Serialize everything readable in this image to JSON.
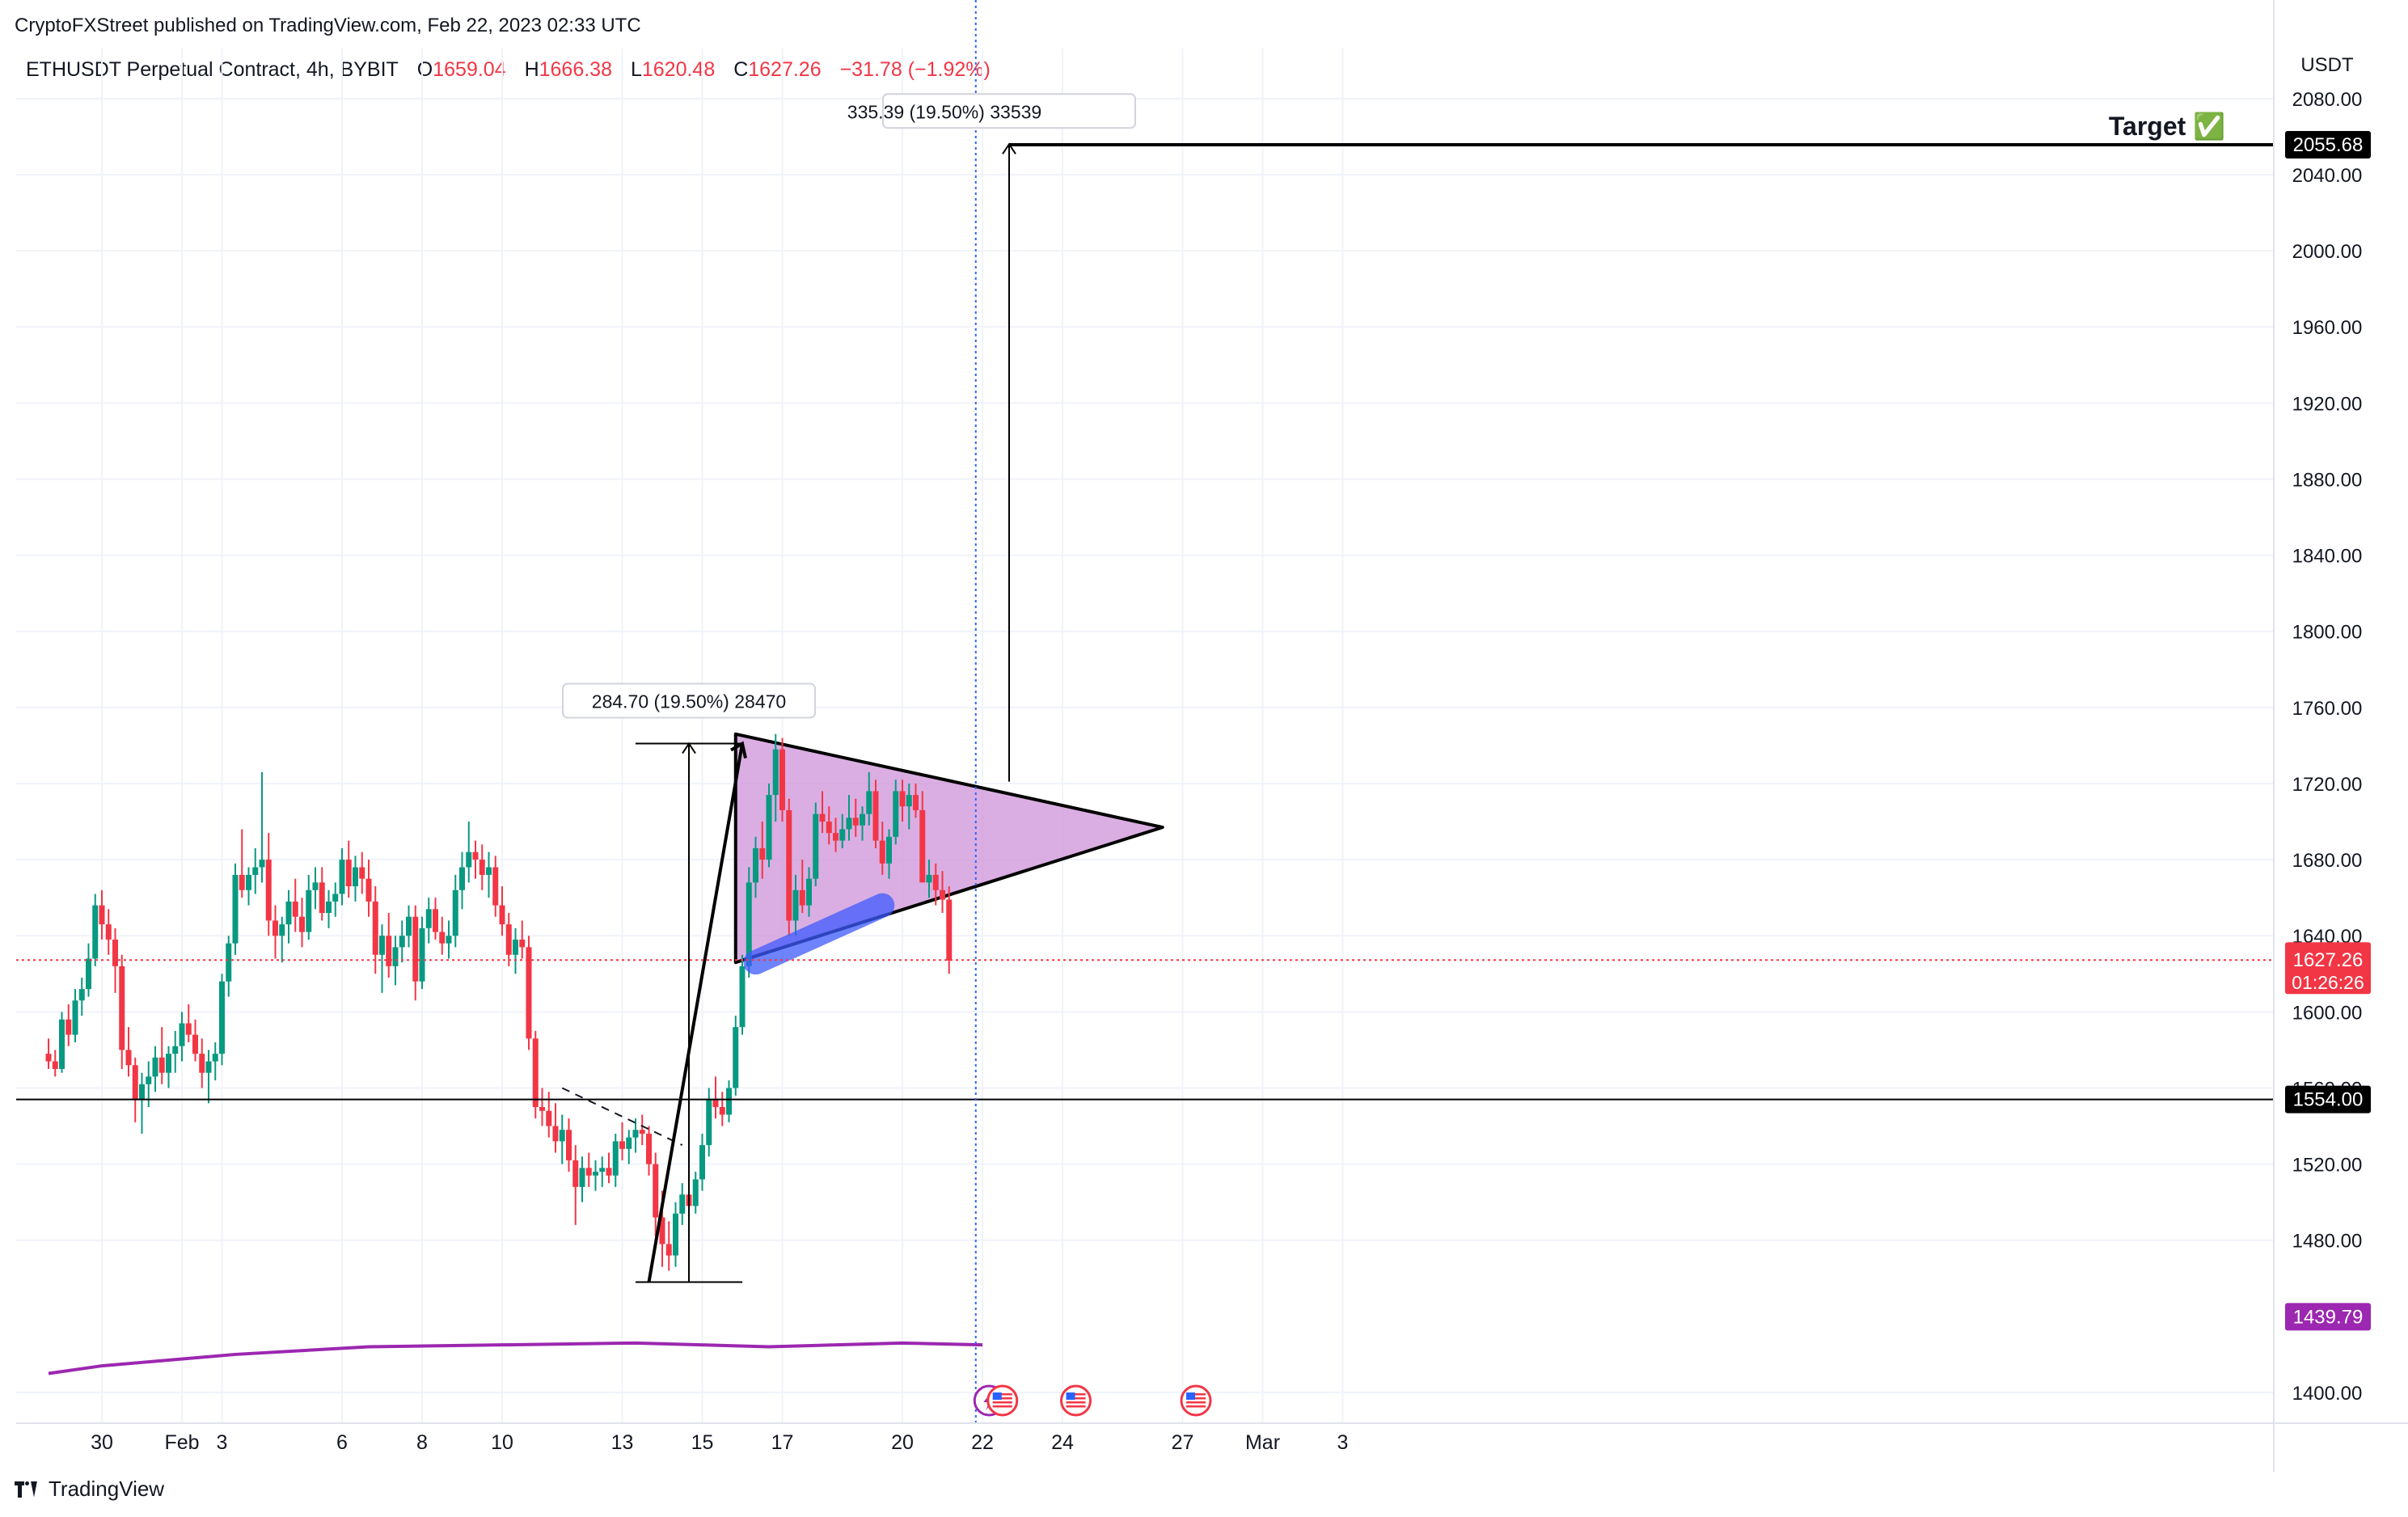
{
  "header": {
    "published": "CryptoFXStreet published on TradingView.com, Feb 22, 2023 02:33 UTC"
  },
  "legend": {
    "symbol": "ETHUSDT Perpetual Contract, 4h, BYBIT",
    "o_label": "O",
    "o": "1659.04",
    "h_label": "H",
    "h": "1666.38",
    "l_label": "L",
    "l": "1620.48",
    "c_label": "C",
    "c": "1627.26",
    "change": "−31.78 (−1.92%)"
  },
  "footer": {
    "brand": "TradingView"
  },
  "colors": {
    "up": "#089981",
    "down": "#f23645",
    "ma": "#9c27b0",
    "triangle_fill": "#ce93d8",
    "blue_highlight": "#3d5afe"
  },
  "chart_data": {
    "type": "candlestick",
    "currency_label": "USDT",
    "ylim": [
      1380,
      2100
    ],
    "yticks": [
      "2080.00",
      "2040.00",
      "2000.00",
      "1960.00",
      "1920.00",
      "1880.00",
      "1840.00",
      "1800.00",
      "1760.00",
      "1720.00",
      "1680.00",
      "1640.00",
      "1600.00",
      "1560.00",
      "1520.00",
      "1480.00",
      "1400.00"
    ],
    "xticks": [
      {
        "label": "30",
        "i": 0
      },
      {
        "label": "Feb",
        "i": 12
      },
      {
        "label": "3",
        "i": 18
      },
      {
        "label": "6",
        "i": 36
      },
      {
        "label": "8",
        "i": 48
      },
      {
        "label": "10",
        "i": 60
      },
      {
        "label": "13",
        "i": 78
      },
      {
        "label": "15",
        "i": 90
      },
      {
        "label": "17",
        "i": 102
      },
      {
        "label": "20",
        "i": 120
      },
      {
        "label": "22",
        "i": 132
      },
      {
        "label": "24",
        "i": 144
      },
      {
        "label": "27",
        "i": 162
      },
      {
        "label": "Mar",
        "i": 174
      },
      {
        "label": "3",
        "i": 186
      }
    ],
    "x_start_index": -8,
    "candles": [
      [
        1578,
        1586,
        1570,
        1574
      ],
      [
        1574,
        1580,
        1566,
        1570
      ],
      [
        1570,
        1600,
        1568,
        1596
      ],
      [
        1596,
        1604,
        1582,
        1588
      ],
      [
        1588,
        1612,
        1584,
        1606
      ],
      [
        1606,
        1618,
        1598,
        1612
      ],
      [
        1612,
        1636,
        1608,
        1628
      ],
      [
        1628,
        1662,
        1624,
        1656
      ],
      [
        1656,
        1664,
        1638,
        1646
      ],
      [
        1646,
        1654,
        1630,
        1638
      ],
      [
        1638,
        1644,
        1610,
        1624
      ],
      [
        1624,
        1630,
        1570,
        1580
      ],
      [
        1580,
        1592,
        1566,
        1572
      ],
      [
        1572,
        1576,
        1542,
        1554
      ],
      [
        1554,
        1568,
        1536,
        1562
      ],
      [
        1562,
        1574,
        1550,
        1566
      ],
      [
        1566,
        1582,
        1558,
        1576
      ],
      [
        1576,
        1592,
        1562,
        1568
      ],
      [
        1568,
        1582,
        1560,
        1578
      ],
      [
        1578,
        1590,
        1568,
        1582
      ],
      [
        1582,
        1600,
        1574,
        1594
      ],
      [
        1594,
        1604,
        1584,
        1588
      ],
      [
        1588,
        1596,
        1574,
        1578
      ],
      [
        1578,
        1586,
        1560,
        1568
      ],
      [
        1568,
        1580,
        1552,
        1574
      ],
      [
        1574,
        1584,
        1564,
        1578
      ],
      [
        1578,
        1620,
        1572,
        1616
      ],
      [
        1616,
        1640,
        1608,
        1636
      ],
      [
        1636,
        1678,
        1630,
        1672
      ],
      [
        1672,
        1696,
        1660,
        1664
      ],
      [
        1664,
        1676,
        1656,
        1672
      ],
      [
        1672,
        1686,
        1662,
        1676
      ],
      [
        1676,
        1726,
        1668,
        1680
      ],
      [
        1680,
        1694,
        1640,
        1648
      ],
      [
        1648,
        1656,
        1628,
        1640
      ],
      [
        1640,
        1650,
        1626,
        1646
      ],
      [
        1646,
        1664,
        1636,
        1658
      ],
      [
        1658,
        1670,
        1642,
        1650
      ],
      [
        1650,
        1660,
        1634,
        1642
      ],
      [
        1642,
        1672,
        1638,
        1664
      ],
      [
        1664,
        1676,
        1654,
        1668
      ],
      [
        1668,
        1676,
        1648,
        1652
      ],
      [
        1652,
        1664,
        1644,
        1658
      ],
      [
        1658,
        1668,
        1650,
        1662
      ],
      [
        1662,
        1686,
        1656,
        1680
      ],
      [
        1680,
        1690,
        1660,
        1666
      ],
      [
        1666,
        1682,
        1658,
        1676
      ],
      [
        1676,
        1684,
        1662,
        1670
      ],
      [
        1670,
        1680,
        1650,
        1658
      ],
      [
        1658,
        1666,
        1620,
        1630
      ],
      [
        1630,
        1646,
        1610,
        1640
      ],
      [
        1640,
        1652,
        1618,
        1624
      ],
      [
        1624,
        1640,
        1614,
        1634
      ],
      [
        1634,
        1648,
        1626,
        1640
      ],
      [
        1640,
        1656,
        1634,
        1650
      ],
      [
        1650,
        1656,
        1606,
        1616
      ],
      [
        1616,
        1650,
        1612,
        1644
      ],
      [
        1644,
        1660,
        1636,
        1654
      ],
      [
        1654,
        1660,
        1638,
        1642
      ],
      [
        1642,
        1650,
        1630,
        1636
      ],
      [
        1636,
        1648,
        1628,
        1640
      ],
      [
        1640,
        1672,
        1634,
        1664
      ],
      [
        1664,
        1684,
        1654,
        1676
      ],
      [
        1676,
        1700,
        1668,
        1684
      ],
      [
        1684,
        1690,
        1670,
        1680
      ],
      [
        1680,
        1688,
        1664,
        1672
      ],
      [
        1672,
        1684,
        1660,
        1676
      ],
      [
        1676,
        1682,
        1650,
        1656
      ],
      [
        1656,
        1666,
        1640,
        1646
      ],
      [
        1646,
        1652,
        1624,
        1630
      ],
      [
        1630,
        1644,
        1620,
        1638
      ],
      [
        1638,
        1648,
        1628,
        1634
      ],
      [
        1634,
        1640,
        1580,
        1586
      ],
      [
        1586,
        1590,
        1544,
        1550
      ],
      [
        1550,
        1560,
        1540,
        1548
      ],
      [
        1548,
        1558,
        1534,
        1540
      ],
      [
        1540,
        1552,
        1526,
        1532
      ],
      [
        1532,
        1546,
        1520,
        1538
      ],
      [
        1538,
        1544,
        1516,
        1522
      ],
      [
        1522,
        1530,
        1488,
        1508
      ],
      [
        1508,
        1524,
        1500,
        1518
      ],
      [
        1518,
        1526,
        1508,
        1514
      ],
      [
        1514,
        1522,
        1506,
        1516
      ],
      [
        1516,
        1524,
        1508,
        1518
      ],
      [
        1518,
        1526,
        1510,
        1514
      ],
      [
        1514,
        1536,
        1508,
        1532
      ],
      [
        1532,
        1542,
        1522,
        1528
      ],
      [
        1528,
        1538,
        1520,
        1534
      ],
      [
        1534,
        1544,
        1526,
        1538
      ],
      [
        1538,
        1546,
        1530,
        1536
      ],
      [
        1536,
        1540,
        1514,
        1520
      ],
      [
        1520,
        1526,
        1482,
        1492
      ],
      [
        1492,
        1506,
        1466,
        1478
      ],
      [
        1478,
        1490,
        1464,
        1472
      ],
      [
        1472,
        1500,
        1466,
        1494
      ],
      [
        1494,
        1510,
        1488,
        1504
      ],
      [
        1504,
        1512,
        1492,
        1498
      ],
      [
        1498,
        1516,
        1494,
        1512
      ],
      [
        1512,
        1536,
        1506,
        1530
      ],
      [
        1530,
        1560,
        1524,
        1554
      ],
      [
        1554,
        1566,
        1544,
        1550
      ],
      [
        1550,
        1558,
        1540,
        1546
      ],
      [
        1546,
        1564,
        1542,
        1560
      ],
      [
        1560,
        1598,
        1556,
        1592
      ],
      [
        1592,
        1630,
        1588,
        1624
      ],
      [
        1624,
        1676,
        1618,
        1668
      ],
      [
        1668,
        1692,
        1660,
        1686
      ],
      [
        1686,
        1700,
        1670,
        1680
      ],
      [
        1680,
        1720,
        1676,
        1714
      ],
      [
        1714,
        1746,
        1700,
        1738
      ],
      [
        1738,
        1744,
        1700,
        1706
      ],
      [
        1706,
        1712,
        1640,
        1648
      ],
      [
        1648,
        1672,
        1640,
        1664
      ],
      [
        1664,
        1680,
        1652,
        1656
      ],
      [
        1656,
        1676,
        1650,
        1670
      ],
      [
        1670,
        1710,
        1666,
        1704
      ],
      [
        1704,
        1716,
        1694,
        1700
      ],
      [
        1700,
        1708,
        1688,
        1694
      ],
      [
        1694,
        1702,
        1684,
        1690
      ],
      [
        1690,
        1704,
        1686,
        1696
      ],
      [
        1696,
        1714,
        1690,
        1702
      ],
      [
        1702,
        1712,
        1692,
        1698
      ],
      [
        1698,
        1708,
        1690,
        1704
      ],
      [
        1704,
        1726,
        1698,
        1716
      ],
      [
        1716,
        1722,
        1686,
        1690
      ],
      [
        1690,
        1700,
        1672,
        1678
      ],
      [
        1678,
        1696,
        1670,
        1692
      ],
      [
        1692,
        1722,
        1688,
        1716
      ],
      [
        1716,
        1722,
        1700,
        1708
      ],
      [
        1708,
        1720,
        1696,
        1714
      ],
      [
        1714,
        1720,
        1702,
        1706
      ],
      [
        1706,
        1716,
        1672,
        1668
      ],
      [
        1668,
        1680,
        1660,
        1672
      ],
      [
        1672,
        1678,
        1656,
        1664
      ],
      [
        1664,
        1674,
        1652,
        1659
      ],
      [
        1659,
        1666,
        1620,
        1627
      ]
    ],
    "ma_line": [
      [
        -8,
        1410
      ],
      [
        0,
        1414
      ],
      [
        20,
        1420
      ],
      [
        40,
        1424
      ],
      [
        60,
        1425
      ],
      [
        80,
        1426
      ],
      [
        100,
        1424
      ],
      [
        120,
        1426
      ],
      [
        132,
        1425
      ]
    ],
    "horizontal_line": {
      "price": 1554,
      "label": "1554.00"
    },
    "current_price": {
      "price": 1627.26,
      "label": "1627.26",
      "countdown": "01:26:26"
    },
    "ma_label": {
      "price": 1439.79,
      "label": "1439.79"
    },
    "target": {
      "price": 2055.68,
      "label": "2055.68",
      "text": "Target ✅"
    },
    "measure_pole": {
      "i": 88,
      "from": 1458,
      "to": 1741,
      "label": "284.70 (19.50%) 28470"
    },
    "measure_target": {
      "i": 136,
      "from": 1721,
      "to": 2056,
      "label": "335.39 (19.50%) 33539"
    },
    "pole_line": {
      "i1": 82,
      "p1": 1458,
      "i2": 96,
      "p2": 1741
    },
    "triangle": [
      [
        95,
        1746
      ],
      [
        159,
        1697
      ],
      [
        95,
        1626
      ]
    ],
    "dashed_line": {
      "i1": 69,
      "p1": 1560,
      "i2": 87,
      "p2": 1530
    },
    "blue_highlight": {
      "i1": 98,
      "p1": 1626,
      "i2": 117,
      "p2": 1656
    },
    "vertical_dotted_i": 131,
    "event_icons": [
      {
        "i": 133,
        "kind": "lightning"
      },
      {
        "i": 135,
        "kind": "us-flag"
      },
      {
        "i": 146,
        "kind": "us-flag"
      },
      {
        "i": 164,
        "kind": "us-flag"
      }
    ]
  }
}
